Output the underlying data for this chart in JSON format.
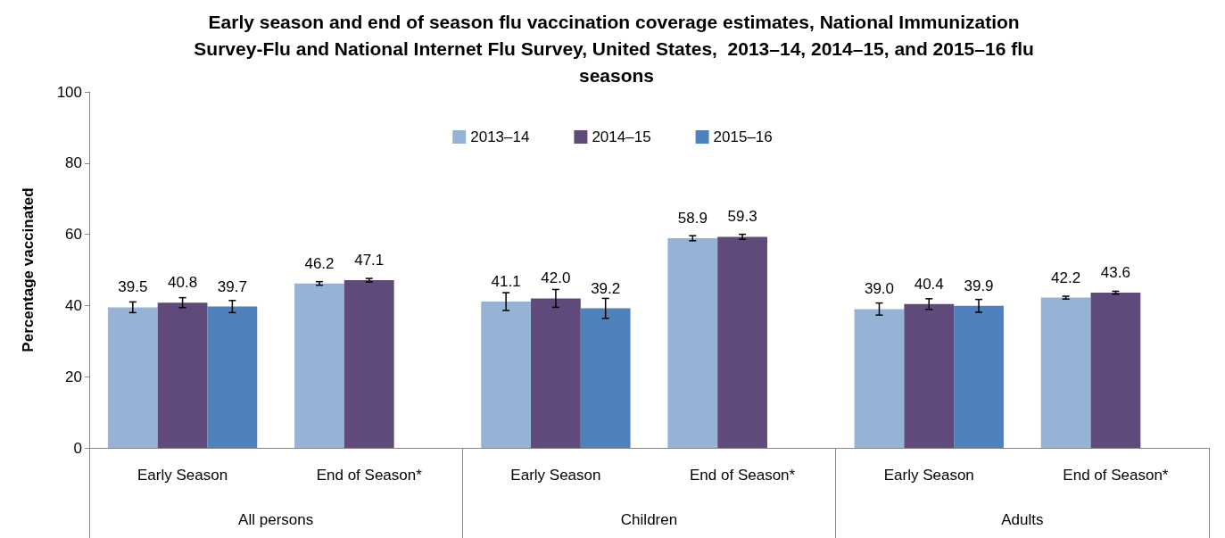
{
  "chart_data": {
    "type": "bar",
    "title": "Early season and end of season flu vaccination coverage estimates, National Immunization Survey-Flu and National Internet Flu Survey, United States,  2013–14, 2014–15, and 2015–16 flu seasons",
    "ylabel": "Percentage vaccinated",
    "categories": [
      "Early Season",
      "End of Season*",
      "Early Season",
      "End of Season*",
      "Early Season",
      "End of Season*"
    ],
    "annotations": [
      "All persons",
      "Children",
      "Adults"
    ],
    "series": [
      {
        "name": "2013–14",
        "color": "#95b3d7",
        "values": [
          39.5,
          46.2,
          41.1,
          58.9,
          39.0,
          42.2
        ],
        "errors": [
          1.5,
          0.5,
          2.5,
          0.7,
          1.7,
          0.4
        ],
        "value_labels": [
          "39.5",
          "46.2",
          "41.1",
          "58.9",
          "39.0",
          "42.2"
        ]
      },
      {
        "name": "2014–15",
        "color": "#604a7b",
        "values": [
          40.8,
          47.1,
          42.0,
          59.3,
          40.4,
          43.6
        ],
        "errors": [
          1.4,
          0.5,
          2.5,
          0.7,
          1.5,
          0.4
        ],
        "value_labels": [
          "40.8",
          "47.1",
          "42.0",
          "59.3",
          "40.4",
          "43.6"
        ]
      },
      {
        "name": "2015–16",
        "color": "#4f81bd",
        "values": [
          39.7,
          null,
          39.2,
          null,
          39.9,
          null
        ],
        "errors": [
          1.7,
          null,
          2.8,
          null,
          1.8,
          null
        ],
        "value_labels": [
          "39.7",
          null,
          "39.2",
          null,
          "39.9",
          null
        ]
      }
    ],
    "ylim": [
      0,
      100
    ],
    "yticks": [
      0,
      20,
      40,
      60,
      80,
      100
    ],
    "grid": false,
    "legend": "top"
  }
}
